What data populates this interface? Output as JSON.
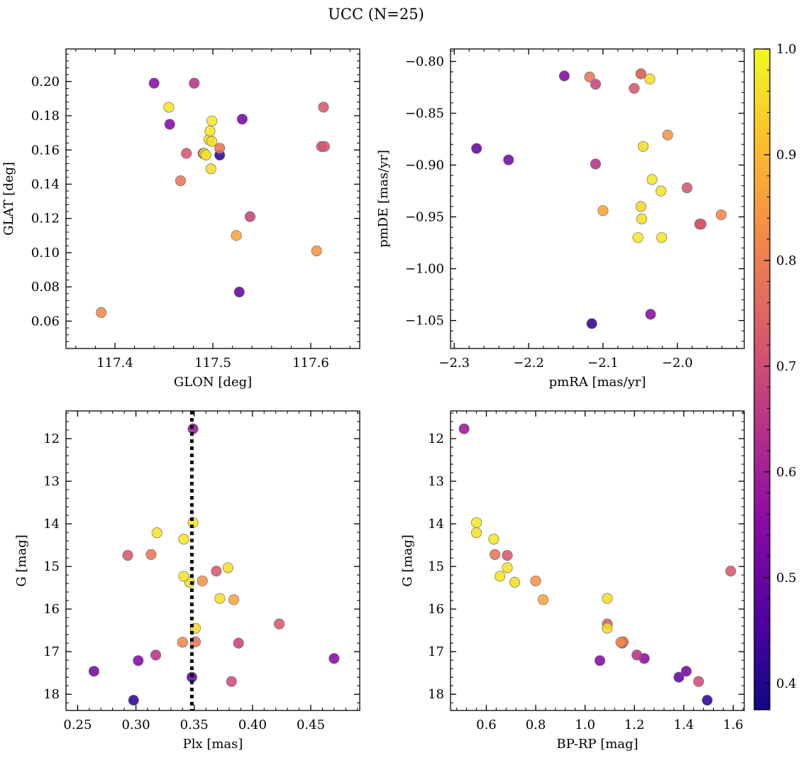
{
  "title": "UCC (N=25)",
  "colormap": {
    "name": "plasma",
    "range": [
      0.375,
      1.0
    ],
    "ticks": [
      0.4,
      0.5,
      0.6,
      0.7,
      0.8,
      0.9,
      1.0
    ],
    "tick_labels": [
      "0.4",
      "0.5",
      "0.6",
      "0.7",
      "0.8",
      "0.9",
      "1.0"
    ],
    "stops": [
      "#0d0887",
      "#5302a3",
      "#8b0aa5",
      "#b83289",
      "#db5c68",
      "#f48849",
      "#febd2a",
      "#f0f921"
    ]
  },
  "chart_data": [
    {
      "type": "scatter",
      "xlabel": "GLON [deg]",
      "ylabel": "GLAT [deg]",
      "xlim": [
        117.35,
        117.65
      ],
      "ylim": [
        0.044,
        0.219
      ],
      "invert_y": false,
      "xticks": [
        117.4,
        117.5,
        117.6
      ],
      "xtick_labels": [
        "117.4",
        "117.5",
        "117.6"
      ],
      "yticks": [
        0.06,
        0.08,
        0.1,
        0.12,
        0.14,
        0.16,
        0.18,
        0.2
      ],
      "ytick_labels": [
        "0.06",
        "0.08",
        "0.10",
        "0.12",
        "0.14",
        "0.16",
        "0.18",
        "0.20"
      ]
    },
    {
      "type": "scatter",
      "xlabel": "pmRA [mas/yr]",
      "ylabel": "pmDE [mas/yr]",
      "xlim": [
        -2.305,
        -1.91
      ],
      "ylim": [
        -1.077,
        -0.788
      ],
      "invert_y": false,
      "xticks": [
        -2.3,
        -2.2,
        -2.1,
        -2.0
      ],
      "xtick_labels": [
        "−2.3",
        "−2.2",
        "−2.1",
        "−2.0"
      ],
      "yticks": [
        -1.05,
        -1.0,
        -0.95,
        -0.9,
        -0.85,
        -0.8
      ],
      "ytick_labels": [
        "−1.05",
        "−1.00",
        "−0.95",
        "−0.90",
        "−0.85",
        "−0.80"
      ]
    },
    {
      "type": "scatter",
      "xlabel": "Plx [mas]",
      "ylabel": "G [mag]",
      "xlim": [
        0.24,
        0.492
      ],
      "ylim": [
        18.38,
        11.35
      ],
      "invert_y": true,
      "xticks": [
        0.25,
        0.3,
        0.35,
        0.4,
        0.45
      ],
      "xtick_labels": [
        "0.25",
        "0.30",
        "0.35",
        "0.40",
        "0.45"
      ],
      "yticks": [
        12,
        13,
        14,
        15,
        16,
        17,
        18
      ],
      "ytick_labels": [
        "12",
        "13",
        "14",
        "15",
        "16",
        "17",
        "18"
      ],
      "vline": 0.348
    },
    {
      "type": "scatter",
      "xlabel": "BP-RP [mag]",
      "ylabel": "G [mag]",
      "xlim": [
        0.455,
        1.645
      ],
      "ylim": [
        18.38,
        11.35
      ],
      "invert_y": true,
      "xticks": [
        0.6,
        0.8,
        1.0,
        1.2,
        1.4,
        1.6
      ],
      "xtick_labels": [
        "0.6",
        "0.8",
        "1.0",
        "1.2",
        "1.4",
        "1.6"
      ],
      "yticks": [
        12,
        13,
        14,
        15,
        16,
        17,
        18
      ],
      "ytick_labels": [
        "12",
        "13",
        "14",
        "15",
        "16",
        "17",
        "18"
      ]
    }
  ],
  "stars": [
    {
      "glon": 117.49,
      "glat": 0.158,
      "pmra": -2.049,
      "pmde": -0.812,
      "plx": 0.349,
      "g": 11.77,
      "bprp": 0.51,
      "prob": 0.58
    },
    {
      "glon": 117.499,
      "glat": 0.177,
      "pmra": -2.053,
      "pmde": -0.97,
      "plx": 0.349,
      "g": 13.97,
      "bprp": 0.56,
      "prob": 0.975
    },
    {
      "glon": 117.455,
      "glat": 0.185,
      "pmra": -2.034,
      "pmde": -0.914,
      "plx": 0.318,
      "g": 14.21,
      "bprp": 0.56,
      "prob": 0.97
    },
    {
      "glon": 117.497,
      "glat": 0.171,
      "pmra": -2.022,
      "pmde": -0.925,
      "plx": 0.341,
      "g": 14.36,
      "bprp": 0.63,
      "prob": 0.97
    },
    {
      "glon": 117.467,
      "glat": 0.142,
      "pmra": -2.118,
      "pmde": -0.815,
      "plx": 0.313,
      "g": 14.72,
      "bprp": 0.635,
      "prob": 0.78
    },
    {
      "glon": 117.473,
      "glat": 0.158,
      "pmra": -2.058,
      "pmde": -0.826,
      "plx": 0.293,
      "g": 14.74,
      "bprp": 0.685,
      "prob": 0.72
    },
    {
      "glon": 117.496,
      "glat": 0.166,
      "pmra": -2.046,
      "pmde": -0.882,
      "plx": 0.379,
      "g": 15.03,
      "bprp": 0.685,
      "prob": 0.96
    },
    {
      "glon": 117.614,
      "glat": 0.162,
      "pmra": -1.987,
      "pmde": -0.922,
      "plx": 0.369,
      "g": 15.11,
      "bprp": 1.59,
      "prob": 0.72
    },
    {
      "glon": 117.493,
      "glat": 0.157,
      "pmra": -2.021,
      "pmde": -0.97,
      "plx": 0.341,
      "g": 15.23,
      "bprp": 0.655,
      "prob": 0.97
    },
    {
      "glon": 117.499,
      "glat": 0.165,
      "pmra": -2.037,
      "pmde": -0.817,
      "plx": 0.346,
      "g": 15.37,
      "bprp": 0.715,
      "prob": 0.96
    },
    {
      "glon": 117.606,
      "glat": 0.101,
      "pmra": -2.013,
      "pmde": -0.871,
      "plx": 0.357,
      "g": 15.34,
      "bprp": 0.8,
      "prob": 0.84
    },
    {
      "glon": 117.498,
      "glat": 0.149,
      "pmra": -2.048,
      "pmde": -0.952,
      "plx": 0.372,
      "g": 15.75,
      "bprp": 1.09,
      "prob": 0.96
    },
    {
      "glon": 117.524,
      "glat": 0.11,
      "pmra": -2.1,
      "pmde": -0.944,
      "plx": 0.384,
      "g": 15.78,
      "bprp": 0.83,
      "prob": 0.87
    },
    {
      "glon": 117.613,
      "glat": 0.185,
      "pmra": -1.968,
      "pmde": -0.957,
      "plx": 0.423,
      "g": 16.35,
      "bprp": 1.09,
      "prob": 0.72
    },
    {
      "glon": 117.491,
      "glat": 0.158,
      "pmra": -2.049,
      "pmde": -0.94,
      "plx": 0.351,
      "g": 16.45,
      "bprp": 1.09,
      "prob": 0.95
    },
    {
      "glon": 117.386,
      "glat": 0.065,
      "pmra": -1.941,
      "pmde": -0.948,
      "plx": 0.34,
      "g": 16.78,
      "bprp": 1.145,
      "prob": 0.82
    },
    {
      "glon": 117.507,
      "glat": 0.161,
      "pmra": -2.049,
      "pmde": -0.812,
      "plx": 0.351,
      "g": 16.77,
      "bprp": 1.155,
      "prob": 0.78
    },
    {
      "glon": 117.538,
      "glat": 0.121,
      "pmra": -2.11,
      "pmde": -0.822,
      "plx": 0.388,
      "g": 16.8,
      "bprp": 1.15,
      "prob": 0.68
    },
    {
      "glon": 117.481,
      "glat": 0.199,
      "pmra": -2.11,
      "pmde": -0.899,
      "plx": 0.317,
      "g": 17.08,
      "bprp": 1.21,
      "prob": 0.64
    },
    {
      "glon": 117.44,
      "glat": 0.199,
      "pmra": -2.036,
      "pmde": -1.044,
      "plx": 0.47,
      "g": 17.16,
      "bprp": 1.24,
      "prob": 0.55
    },
    {
      "glon": 117.456,
      "glat": 0.175,
      "pmra": -2.152,
      "pmde": -0.814,
      "plx": 0.302,
      "g": 17.21,
      "bprp": 1.06,
      "prob": 0.54
    },
    {
      "glon": 117.53,
      "glat": 0.178,
      "pmra": -2.227,
      "pmde": -0.895,
      "plx": 0.264,
      "g": 17.46,
      "bprp": 1.41,
      "prob": 0.52
    },
    {
      "glon": 117.527,
      "glat": 0.077,
      "pmra": -2.27,
      "pmde": -0.884,
      "plx": 0.348,
      "g": 17.6,
      "bprp": 1.38,
      "prob": 0.49
    },
    {
      "glon": 117.611,
      "glat": 0.162,
      "pmra": -1.97,
      "pmde": -0.957,
      "plx": 0.382,
      "g": 17.7,
      "bprp": 1.46,
      "prob": 0.7
    },
    {
      "glon": 117.507,
      "glat": 0.157,
      "pmra": -2.115,
      "pmde": -1.053,
      "plx": 0.298,
      "g": 18.14,
      "bprp": 1.495,
      "prob": 0.42
    }
  ]
}
